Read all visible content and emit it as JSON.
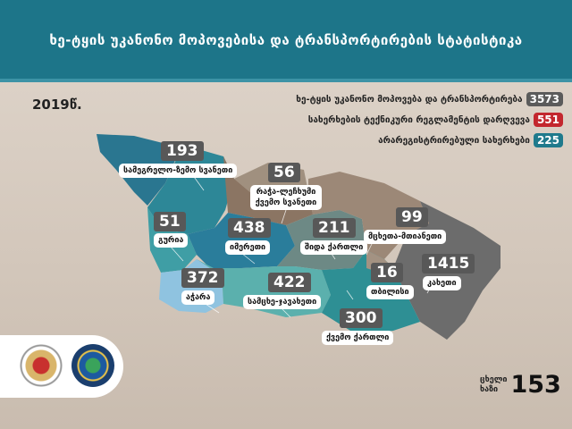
{
  "header": {
    "title": "ხე-ტყის უკანონო მოპოვებისა და ტრანსპორტირების სტატისტიკა"
  },
  "year": "2019წ.",
  "legend": [
    {
      "label": "ხე-ტყის უკანონო მოპოვება და ტრანსპორტირება",
      "value": "3573",
      "color": "#5b5b5b"
    },
    {
      "label": "სახერხების ტექნიკური რეგლამენტის დარღვევა",
      "value": "551",
      "color": "#c3272e"
    },
    {
      "label": "არარეგისტრირებული სახერხები",
      "value": "225",
      "color": "#1f7a8c"
    }
  ],
  "regions": [
    {
      "name": "სამეგრელო-ზემო სვანეთი",
      "value": "193",
      "color": "#2d8797"
    },
    {
      "name": "რაჭა-ლეჩხუმი ქვემო სვანეთი",
      "value": "56",
      "color": "#8b7563"
    },
    {
      "name": "გურია",
      "value": "51",
      "color": "#3f9ea5"
    },
    {
      "name": "იმერეთი",
      "value": "438",
      "color": "#2a7d9b"
    },
    {
      "name": "შიდა ქართლი",
      "value": "211",
      "color": "#6d8985"
    },
    {
      "name": "მცხეთა-მთიანეთი",
      "value": "99",
      "color": "#9c8877"
    },
    {
      "name": "აჭარა",
      "value": "372",
      "color": "#8fc3e0"
    },
    {
      "name": "სამცხე-ჯავახეთი",
      "value": "422",
      "color": "#5bb0ad"
    },
    {
      "name": "თბილისი",
      "value": "16",
      "color": "#a39282"
    },
    {
      "name": "კახეთი",
      "value": "1415",
      "color": "#6c6c6c"
    },
    {
      "name": "ქვემო ქართლი",
      "value": "300",
      "color": "#2e8f94"
    }
  ],
  "hotline": {
    "label_line1": "ცხელი",
    "label_line2": "ხაზი",
    "number": "153"
  }
}
